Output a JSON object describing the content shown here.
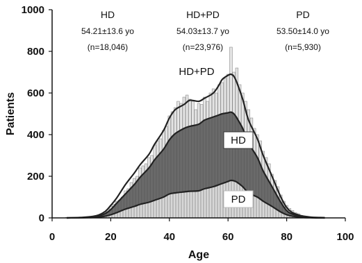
{
  "chart_data": {
    "type": "area",
    "xlabel": "Age",
    "ylabel": "Patients",
    "xlim": [
      0,
      100
    ],
    "ylim": [
      0,
      1000
    ],
    "x_ticks": [
      "0",
      "20",
      "40",
      "60",
      "80",
      "100"
    ],
    "y_ticks": [
      "0",
      "200",
      "400",
      "600",
      "800",
      "1000"
    ],
    "grid": false,
    "x": [
      5,
      10,
      15,
      18,
      20,
      22,
      25,
      28,
      30,
      33,
      35,
      38,
      40,
      42,
      45,
      47,
      50,
      52,
      55,
      57,
      58,
      60,
      61,
      62,
      63,
      65,
      67,
      70,
      72,
      75,
      78,
      80,
      82,
      85,
      88,
      90,
      93
    ],
    "series": [
      {
        "name": "HD+PD",
        "values": [
          0,
          2,
          10,
          30,
          60,
          95,
          160,
          215,
          255,
          305,
          355,
          420,
          480,
          520,
          545,
          565,
          560,
          575,
          600,
          640,
          665,
          685,
          690,
          680,
          650,
          570,
          470,
          380,
          300,
          200,
          100,
          50,
          25,
          10,
          4,
          2,
          1
        ]
      },
      {
        "name": "HD",
        "values": [
          0,
          1,
          6,
          20,
          40,
          70,
          115,
          160,
          195,
          240,
          280,
          330,
          375,
          405,
          430,
          440,
          450,
          470,
          485,
          495,
          500,
          505,
          508,
          500,
          480,
          430,
          360,
          290,
          225,
          150,
          75,
          35,
          18,
          7,
          3,
          1,
          0
        ]
      },
      {
        "name": "PD",
        "values": [
          0,
          1,
          3,
          8,
          15,
          25,
          42,
          55,
          65,
          75,
          85,
          100,
          115,
          120,
          125,
          128,
          130,
          140,
          150,
          160,
          165,
          175,
          180,
          178,
          172,
          150,
          120,
          100,
          80,
          55,
          28,
          15,
          8,
          3,
          1,
          0,
          0
        ]
      }
    ],
    "histogram": {
      "ages": [
        5,
        10,
        14,
        16,
        18,
        19,
        20,
        21,
        22,
        23,
        24,
        25,
        26,
        27,
        28,
        29,
        30,
        31,
        32,
        33,
        34,
        35,
        36,
        37,
        38,
        39,
        40,
        41,
        42,
        43,
        44,
        45,
        46,
        47,
        48,
        49,
        50,
        51,
        52,
        53,
        54,
        55,
        56,
        57,
        58,
        59,
        60,
        61,
        62,
        63,
        64,
        65,
        66,
        67,
        68,
        69,
        70,
        71,
        72,
        73,
        74,
        75,
        76,
        77,
        78,
        79,
        80,
        81,
        82,
        83,
        84,
        85,
        87,
        89,
        92
      ],
      "counts": [
        2,
        3,
        8,
        15,
        30,
        40,
        55,
        65,
        80,
        85,
        100,
        130,
        140,
        170,
        190,
        200,
        240,
        250,
        260,
        290,
        300,
        350,
        370,
        380,
        420,
        440,
        490,
        510,
        530,
        560,
        550,
        580,
        590,
        570,
        560,
        520,
        550,
        545,
        580,
        560,
        600,
        620,
        600,
        640,
        650,
        670,
        690,
        820,
        700,
        720,
        640,
        600,
        560,
        520,
        480,
        430,
        400,
        370,
        320,
        290,
        260,
        210,
        180,
        150,
        110,
        80,
        60,
        45,
        35,
        25,
        20,
        12,
        8,
        4,
        2
      ]
    },
    "annotations": [
      {
        "label": "HD",
        "stat": "54.21±13.6 yo",
        "n": "(n=18,046)"
      },
      {
        "label": "HD+PD",
        "stat": "54.03±13.7 yo",
        "n": "(n=23,976)"
      },
      {
        "label": "PD",
        "stat": "53.50±14.0 yo",
        "n": "(n=5,930)"
      }
    ],
    "curve_labels": [
      "HD+PD",
      "HD",
      "PD"
    ],
    "colors": {
      "bar_fill": "#e4e4e4",
      "bar_stroke": "#8a8a8a",
      "hd_fill": "#555555",
      "pd_fill": "#dcdcdc",
      "curve": "#222222"
    }
  }
}
